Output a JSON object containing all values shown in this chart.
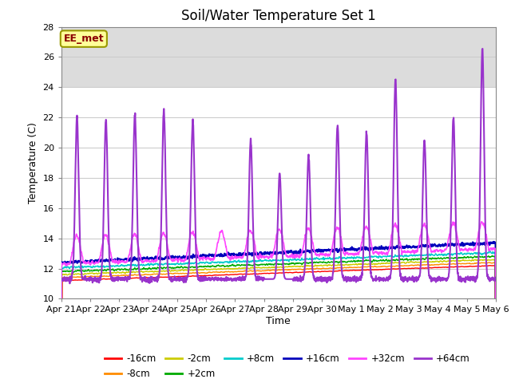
{
  "title": "Soil/Water Temperature Set 1",
  "xlabel": "Time",
  "ylabel": "Temperature (C)",
  "ylim": [
    10,
    28
  ],
  "yticks": [
    10,
    12,
    14,
    16,
    18,
    20,
    22,
    24,
    26,
    28
  ],
  "annotation": "EE_met",
  "annotation_color": "#8B0000",
  "annotation_bg": "#FFFF99",
  "annotation_border": "#999900",
  "bg_band_ystart": 24,
  "bg_band_yend": 28,
  "bg_band_color": "#DCDCDC",
  "hline_color": "#CCCCCC",
  "plot_bg": "#FFFFFF",
  "series": [
    {
      "label": "-16cm",
      "color": "#FF0000",
      "lw": 1.0
    },
    {
      "label": "-8cm",
      "color": "#FF8C00",
      "lw": 1.0
    },
    {
      "label": "-2cm",
      "color": "#CCCC00",
      "lw": 1.0
    },
    {
      "label": "+2cm",
      "color": "#00AA00",
      "lw": 1.0
    },
    {
      "label": "+8cm",
      "color": "#00CCCC",
      "lw": 1.0
    },
    {
      "label": "+16cm",
      "color": "#0000BB",
      "lw": 1.5
    },
    {
      "label": "+32cm",
      "color": "#FF44FF",
      "lw": 1.2
    },
    {
      "label": "+64cm",
      "color": "#9933CC",
      "lw": 1.5
    }
  ],
  "tick_labels": [
    "Apr 21",
    "Apr 22",
    "Apr 23",
    "Apr 24",
    "Apr 25",
    "Apr 26",
    "Apr 27",
    "Apr 28",
    "Apr 29",
    "Apr 30",
    "May 1",
    "May 2",
    "May 3",
    "May 4",
    "May 5",
    "May 6"
  ],
  "day_peaks_p64": [
    22.0,
    21.8,
    22.2,
    22.5,
    21.8,
    12.5,
    20.5,
    18.5,
    19.5,
    21.5,
    21.0,
    24.5,
    20.5,
    22.0,
    26.5
  ],
  "n_days": 15,
  "n_per_day": 144
}
